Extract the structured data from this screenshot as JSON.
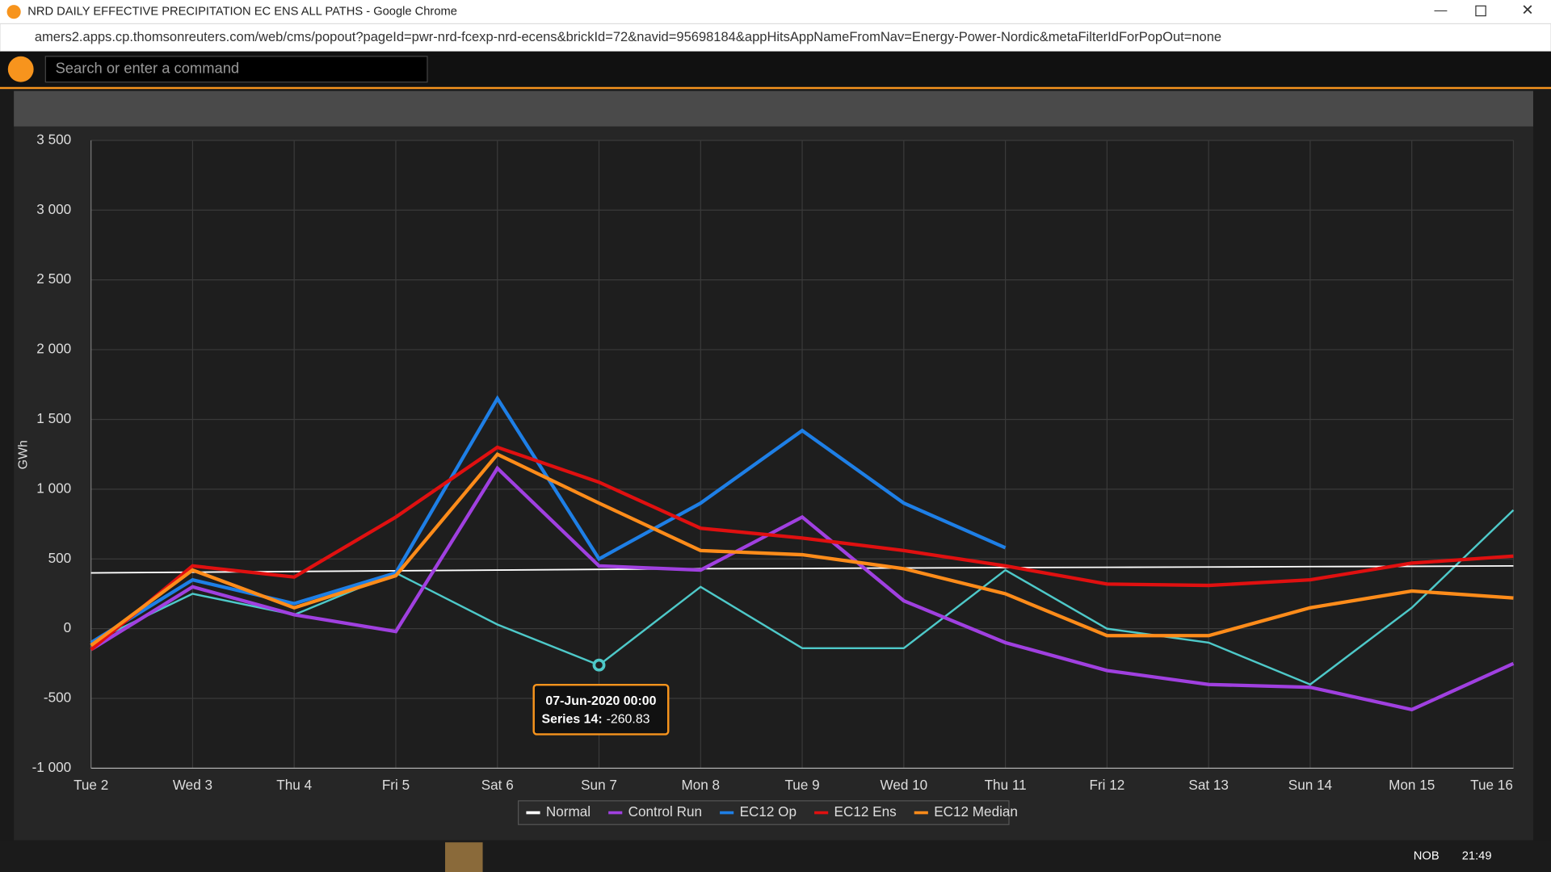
{
  "browser": {
    "title": "NRD DAILY EFFECTIVE PRECIPITATION EC ENS ALL PATHS - Google Chrome",
    "url": "amers2.apps.cp.thomsonreuters.com/web/cms/popout?pageId=pwr-nrd-fcexp-nrd-ecens&brickId=72&navid=95698184&appHitsAppNameFromNav=Energy-Power-Nordic&metaFilterIdForPopOut=none"
  },
  "app": {
    "search_placeholder": "Search or enter a command"
  },
  "chart_data": {
    "type": "line",
    "y_label": "GWh",
    "categories": [
      "Tue 2",
      "Wed 3",
      "Thu 4",
      "Fri 5",
      "Sat 6",
      "Sun 7",
      "Mon 8",
      "Tue 9",
      "Wed 10",
      "Thu 11",
      "Fri 12",
      "Sat 13",
      "Sun 14",
      "Mon 15",
      "Tue 16"
    ],
    "ylim": [
      -1000,
      3500
    ],
    "yticks": [
      {
        "value": -1000,
        "label": "-1 000"
      },
      -500,
      0,
      500,
      {
        "value": 1000,
        "label": "1 000"
      },
      {
        "value": 1500,
        "label": "1 500"
      },
      {
        "value": 2000,
        "label": "2 000"
      },
      {
        "value": 2500,
        "label": "2 500"
      },
      {
        "value": 3000,
        "label": "3 000"
      },
      {
        "value": 3500,
        "label": "3 500"
      }
    ],
    "grid": true,
    "series": [
      {
        "name": "Normal",
        "color": "#ffffff",
        "values": [
          400,
          405,
          410,
          415,
          420,
          425,
          430,
          432,
          435,
          438,
          440,
          442,
          445,
          447,
          450
        ]
      },
      {
        "name": "Control Run",
        "color": "#a040e0",
        "values": [
          -150,
          300,
          100,
          -20,
          1150,
          450,
          420,
          800,
          200,
          -100,
          -300,
          -400,
          -420,
          -580,
          -250
        ]
      },
      {
        "name": "EC12 Op",
        "color": "#1e7fe6",
        "values": [
          -100,
          350,
          180,
          400,
          1650,
          500,
          900,
          1420,
          900,
          580,
          null,
          null,
          null,
          null,
          null
        ]
      },
      {
        "name": "EC12 Ens",
        "color": "#e01010",
        "values": [
          -150,
          450,
          370,
          800,
          1300,
          1050,
          720,
          650,
          560,
          450,
          320,
          310,
          350,
          470,
          520
        ]
      },
      {
        "name": "EC12 Median",
        "color": "#ff8c1a",
        "values": [
          -120,
          420,
          150,
          380,
          1250,
          900,
          560,
          530,
          430,
          250,
          -50,
          -50,
          150,
          270,
          220
        ]
      }
    ],
    "highlight_series": {
      "color": "#4ec9c9",
      "values": [
        -100,
        250,
        100,
        400,
        30,
        -260.83,
        300,
        -140,
        -140,
        420,
        0,
        -100,
        -400,
        150,
        850
      ]
    }
  },
  "tooltip": {
    "date": "07-Jun-2020 00:00",
    "label": "Series 14:"
  },
  "taskbar": {
    "language": "NOB",
    "time": "21:49"
  }
}
